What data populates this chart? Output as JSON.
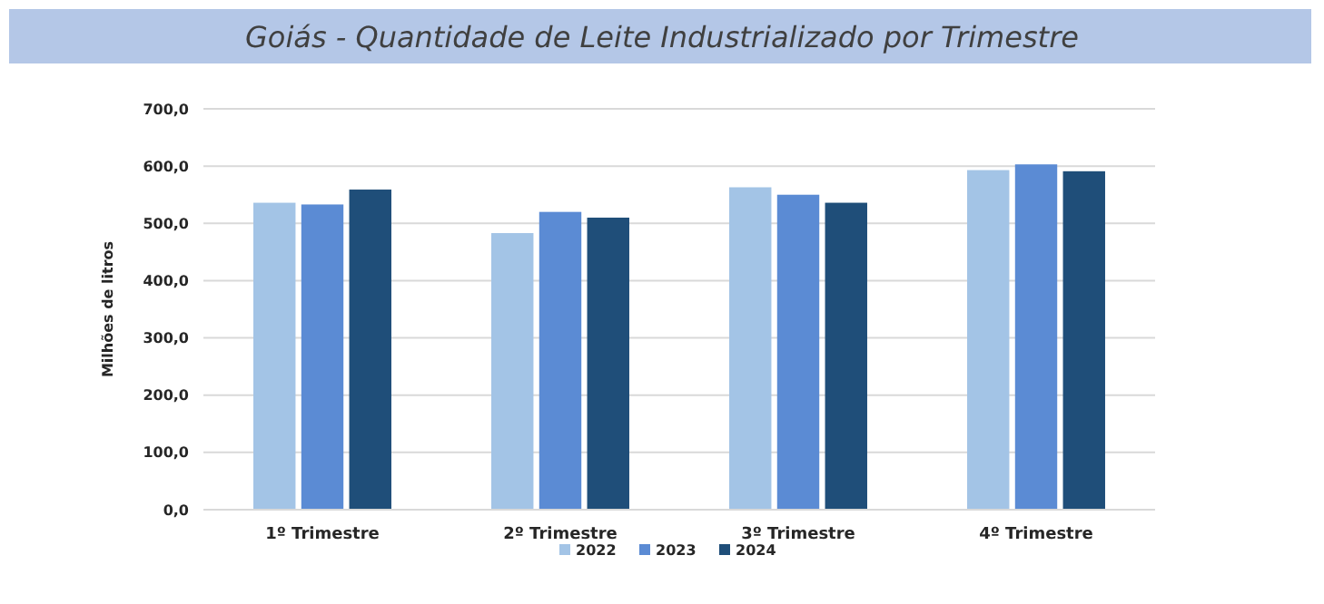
{
  "chart_data": {
    "type": "bar",
    "title": "Goiás - Quantidade de Leite Industrializado por Trimestre",
    "ylabel": "Milhões de litros",
    "categories": [
      "1º Trimestre",
      "2º Trimestre",
      "3º Trimestre",
      "4º Trimestre"
    ],
    "series": [
      {
        "name": "2022",
        "color": "#a3c4e6",
        "values": [
          536,
          483,
          563,
          593
        ]
      },
      {
        "name": "2023",
        "color": "#5b8bd4",
        "values": [
          533,
          520,
          550,
          603
        ]
      },
      {
        "name": "2024",
        "color": "#1f4e79",
        "values": [
          559,
          510,
          536,
          591
        ]
      }
    ],
    "ylim": [
      0,
      700
    ],
    "yticks": [
      {
        "value": 0,
        "label": "0,0"
      },
      {
        "value": 100,
        "label": "100,0"
      },
      {
        "value": 200,
        "label": "200,0"
      },
      {
        "value": 300,
        "label": "300,0"
      },
      {
        "value": 400,
        "label": "400,0"
      },
      {
        "value": 500,
        "label": "500,0"
      },
      {
        "value": 600,
        "label": "600,0"
      },
      {
        "value": 700,
        "label": "700,0"
      }
    ],
    "grid": "y",
    "legend": "bottom"
  }
}
